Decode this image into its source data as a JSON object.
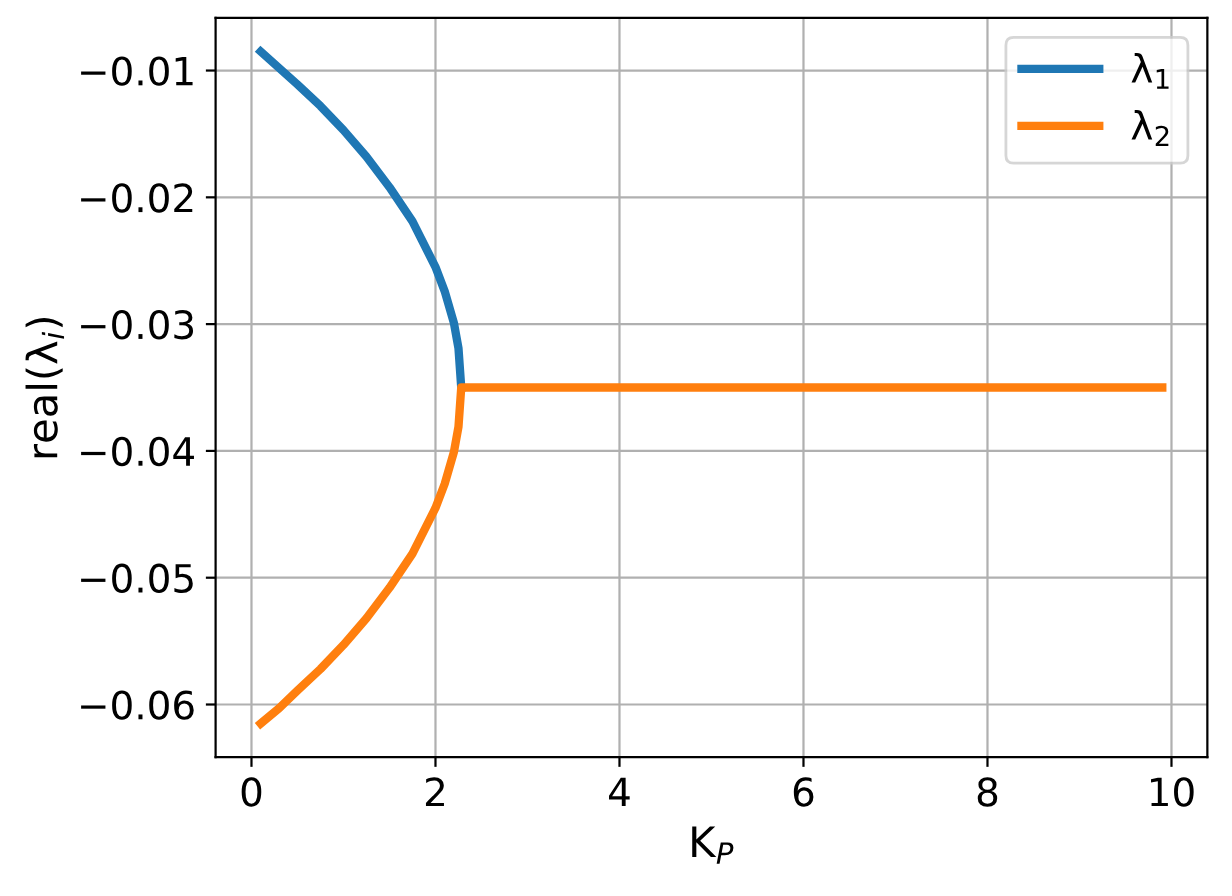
{
  "chart_data": {
    "type": "line",
    "xlabel": "K$_{P}$",
    "ylabel": "real(λ$_{i}$)",
    "series": [
      {
        "name": "λ$_{1}$",
        "color": "#1f77b4",
        "x": [
          0.1,
          0.3,
          0.5,
          0.75,
          1.0,
          1.25,
          1.5,
          1.75,
          2.0,
          2.1,
          2.2,
          2.25,
          2.28
        ],
        "values": [
          -0.0085,
          -0.0098,
          -0.0111,
          -0.0128,
          -0.0147,
          -0.0168,
          -0.0192,
          -0.0219,
          -0.0255,
          -0.0274,
          -0.0299,
          -0.0319,
          -0.035
        ]
      },
      {
        "name": "λ$_{2}$",
        "color": "#ff7f0e",
        "x": [
          0.1,
          0.3,
          0.5,
          0.75,
          1.0,
          1.25,
          1.5,
          1.75,
          2.0,
          2.1,
          2.2,
          2.25,
          2.28,
          9.9
        ],
        "values": [
          -0.0615,
          -0.0603,
          -0.0589,
          -0.0572,
          -0.0553,
          -0.0532,
          -0.0508,
          -0.0481,
          -0.0445,
          -0.0426,
          -0.0401,
          -0.0381,
          -0.035,
          -0.035
        ]
      }
    ],
    "xlim": [
      -0.39,
      10.39
    ],
    "xticks": [
      0,
      2,
      4,
      6,
      8,
      10
    ],
    "ylim": [
      -0.06415,
      -0.00585
    ],
    "yticks": [
      {
        "value": -0.06,
        "label": "−0.06"
      },
      {
        "value": -0.05,
        "label": "−0.05"
      },
      {
        "value": -0.04,
        "label": "−0.04"
      },
      {
        "value": -0.03,
        "label": "−0.03"
      },
      {
        "value": -0.02,
        "label": "−0.02"
      },
      {
        "value": -0.01,
        "label": "−0.01"
      }
    ],
    "grid": true,
    "legend": "top right",
    "marker": "none",
    "line_style": "solid"
  }
}
